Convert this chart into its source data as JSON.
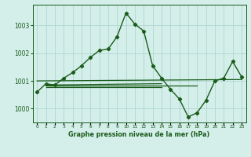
{
  "title": "Graphe pression niveau de la mer (hPa)",
  "background_color": "#d4eeea",
  "grid_color": "#b0d8d0",
  "line_color": "#1a5c1a",
  "text_color": "#1a5c1a",
  "xlim": [
    -0.5,
    23.5
  ],
  "ylim": [
    999.5,
    1003.75
  ],
  "yticks": [
    1000,
    1001,
    1002,
    1003
  ],
  "xticks": [
    0,
    1,
    2,
    3,
    4,
    5,
    6,
    7,
    8,
    9,
    10,
    11,
    12,
    13,
    14,
    15,
    16,
    17,
    18,
    19,
    20,
    21,
    22,
    23
  ],
  "main_x": [
    0,
    1,
    2,
    3,
    4,
    5,
    6,
    7,
    8,
    9,
    10,
    11,
    12,
    13,
    14,
    15,
    16,
    17,
    18,
    19,
    20,
    21,
    22,
    23
  ],
  "main_y": [
    1000.6,
    1000.9,
    1000.85,
    1001.1,
    1001.3,
    1001.55,
    1001.85,
    1002.1,
    1002.15,
    1002.6,
    1003.45,
    1003.05,
    1002.8,
    1001.55,
    1001.1,
    1000.7,
    1000.35,
    999.7,
    999.85,
    1000.3,
    1001.0,
    1001.1,
    1001.7,
    1001.15
  ],
  "line2_x": [
    0,
    23
  ],
  "line2_y": [
    1001.0,
    1001.05
  ],
  "line3_x": [
    1,
    14
  ],
  "line3_y": [
    1000.85,
    1000.9
  ],
  "line4_x": [
    1,
    18
  ],
  "line4_y": [
    1000.82,
    1000.82
  ],
  "line5_x": [
    1,
    14
  ],
  "line5_y": [
    1000.78,
    1000.78
  ]
}
